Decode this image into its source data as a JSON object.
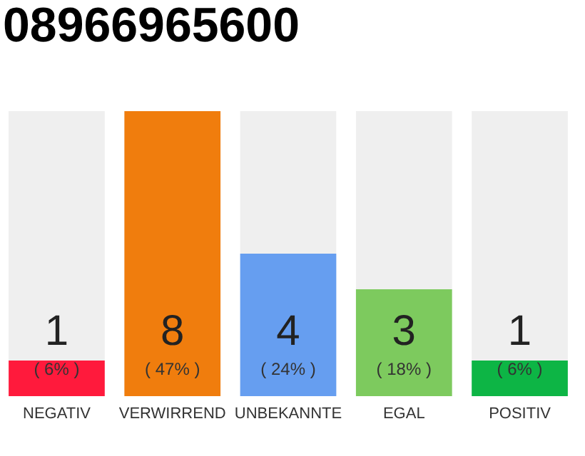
{
  "chart_data": {
    "type": "bar",
    "title": "08966965600",
    "categories": [
      "NEGATIV",
      "VERWIRREND",
      "UNBEKANNTE",
      "EGAL",
      "POSITIV"
    ],
    "values": [
      1,
      8,
      4,
      3,
      1
    ],
    "colors": [
      "#ff1a3c",
      "#f07d0d",
      "#669ef0",
      "#7dca5e",
      "#0db545"
    ],
    "ylim": [
      0,
      8
    ],
    "data_labels": true,
    "grid": false,
    "legend": false,
    "annotations": [
      "( 6% )",
      "( 47% )",
      "( 24% )",
      "( 18% )",
      "( 6% )"
    ]
  }
}
